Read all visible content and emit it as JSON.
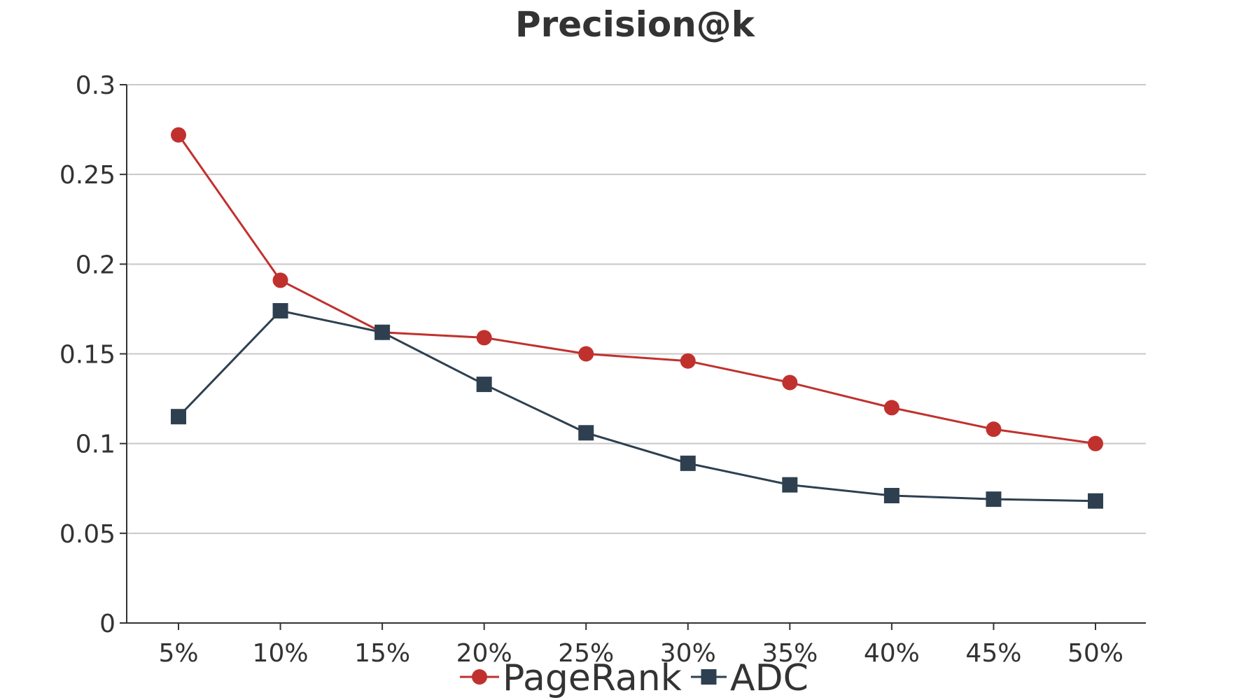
{
  "chart_data": {
    "type": "line",
    "title": "Precision@k",
    "xlabel": "",
    "ylabel": "",
    "categories": [
      "5%",
      "10%",
      "15%",
      "20%",
      "25%",
      "30%",
      "35%",
      "40%",
      "45%",
      "50%"
    ],
    "ylim": [
      0,
      0.3
    ],
    "yticks": [
      0,
      0.05,
      0.1,
      0.15,
      0.2,
      0.25,
      0.3
    ],
    "ytick_labels": [
      "0",
      "0.05",
      "0.1",
      "0.15",
      "0.2",
      "0.25",
      "0.3"
    ],
    "grid": "horizontal",
    "legend_position": "bottom",
    "series": [
      {
        "name": "PageRank",
        "marker": "circle",
        "color": "#c0312e",
        "values": [
          0.272,
          0.191,
          0.162,
          0.159,
          0.15,
          0.146,
          0.134,
          0.12,
          0.108,
          0.1
        ]
      },
      {
        "name": "ADC",
        "marker": "square",
        "color": "#2e4050",
        "values": [
          0.115,
          0.174,
          0.162,
          0.133,
          0.106,
          0.089,
          0.077,
          0.071,
          0.069,
          0.068
        ]
      }
    ]
  }
}
